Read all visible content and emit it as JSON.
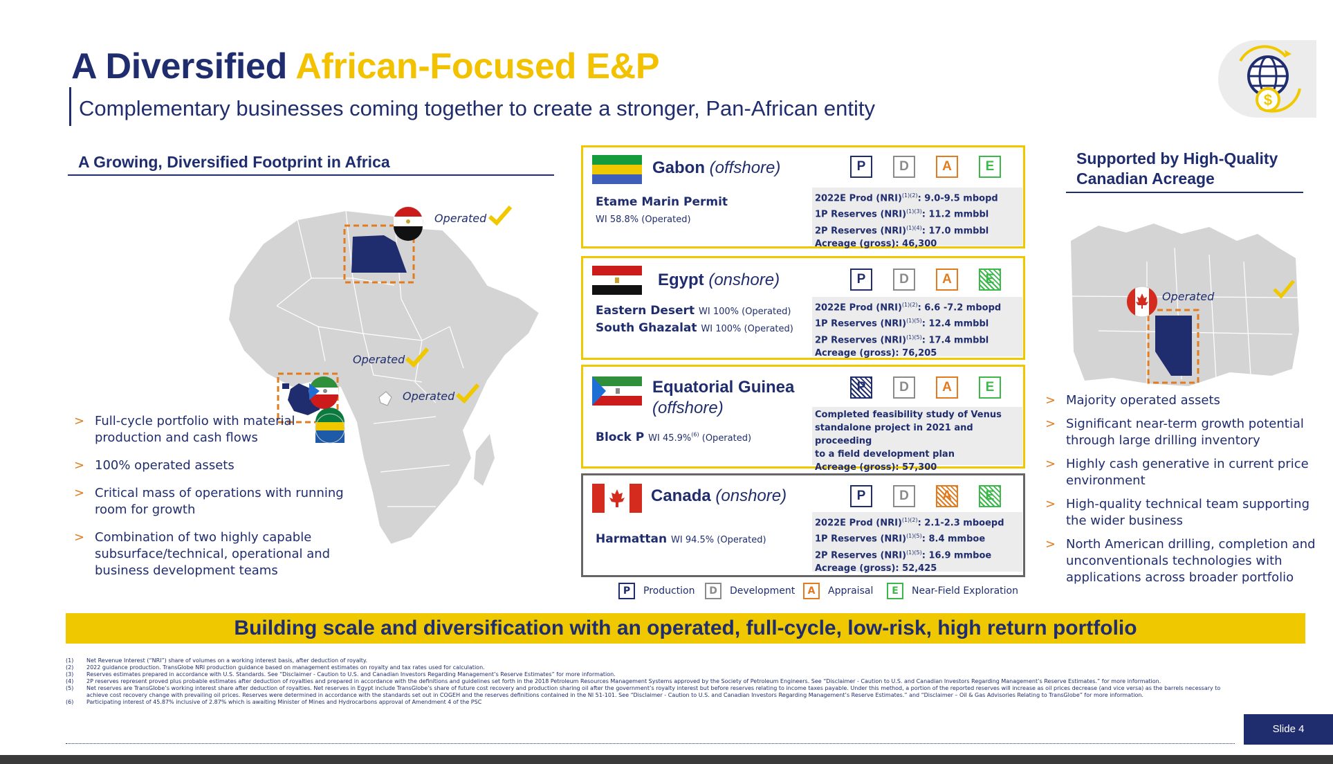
{
  "header": {
    "title_part1": "A Diversified ",
    "title_part2": "African-Focused E&P",
    "subtitle": "Complementary businesses coming together to create a stronger, Pan-African entity",
    "icon": "globe-dollar-icon"
  },
  "left": {
    "heading": "A Growing, Diversified Footprint in Africa",
    "operated_label": "Operated",
    "map_icon": "africa-map",
    "bullets": [
      "Full-cycle portfolio with material production and cash flows",
      "100% operated assets",
      "Critical mass of operations with running room for growth",
      "Combination of two highly capable subsurface/technical, operational and business development teams"
    ]
  },
  "cards": {
    "gabon": {
      "name": "Gabon",
      "loc": "(offshore)",
      "asset": "Etame Marin Permit",
      "wi": "WI 58.8% (Operated)",
      "stats": [
        {
          "label": "2022E Prod (NRI)",
          "sup": "(1)(2)",
          "value": ": 9.0-9.5 mbopd"
        },
        {
          "label": "1P Reserves (NRI)",
          "sup": "(1)(3)",
          "value": ": 11.2 mmbbl"
        },
        {
          "label": "2P Reserves (NRI)",
          "sup": "(1)(4)",
          "value": ": 17.0 mmbbl"
        },
        {
          "label": "Acreage (gross): 46,300",
          "sup": "",
          "value": ""
        }
      ]
    },
    "egypt": {
      "name": "Egypt",
      "loc": "(onshore)",
      "asset1": "Eastern Desert",
      "wi1": "WI 100% (Operated)",
      "asset2": "South Ghazalat",
      "wi2": "WI 100% (Operated)",
      "stats": [
        {
          "label": "2022E Prod (NRI)",
          "sup": "(1)(2)",
          "value": ": 6.6 -7.2 mbopd"
        },
        {
          "label": "1P Reserves (NRI)",
          "sup": "(1)(5)",
          "value": ": 12.4 mmbbl"
        },
        {
          "label": "2P Reserves (NRI)",
          "sup": "(1)(5)",
          "value": ": 17.4 mmbbl"
        },
        {
          "label": "Acreage (gross): 76,205",
          "sup": "",
          "value": ""
        }
      ]
    },
    "eqg": {
      "name": "Equatorial Guinea",
      "loc": "(offshore)",
      "asset": "Block P",
      "wi_a": "WI 45.9%",
      "wi_sup": "(6)",
      "wi_b": " (Operated)",
      "text1": "Completed feasibility study of Venus",
      "text2": "standalone project in 2021 and proceeding",
      "text3": "to a field development plan",
      "text4": "Acreage (gross): 57,300"
    },
    "canada": {
      "name": "Canada",
      "loc": "(onshore)",
      "asset": "Harmattan",
      "wi": "WI 94.5% (Operated)",
      "stats": [
        {
          "label": "2022E Prod (NRI)",
          "sup": "(1)(2)",
          "value": ": 2.1-2.3 mboepd"
        },
        {
          "label": "1P Reserves (NRI)",
          "sup": "(1)(5)",
          "value": ": 8.4 mmboe"
        },
        {
          "label": "2P Reserves (NRI)",
          "sup": "(1)(5)",
          "value": ": 16.9 mmboe"
        },
        {
          "label": "Acreage (gross): 52,425",
          "sup": "",
          "value": ""
        }
      ]
    }
  },
  "badge_letters": {
    "p": "P",
    "d": "D",
    "a": "A",
    "e": "E"
  },
  "legend": {
    "production": "Production",
    "development": "Development",
    "appraisal": "Appraisal",
    "exploration": "Near-Field Exploration"
  },
  "right": {
    "heading_line1": "Supported by High-Quality",
    "heading_line2": "Canadian Acreage",
    "operated_label": "Operated",
    "bullets": [
      "Majority operated assets",
      "Significant near-term growth potential through large drilling inventory",
      "Highly cash generative in current price environment",
      "High-quality technical team supporting the wider business",
      "North American drilling, completion and unconventionals technologies with applications across broader portfolio"
    ]
  },
  "banner": "Building scale and diversification with an operated, full-cycle, low-risk, high return portfolio",
  "footnotes": [
    {
      "n": "(1)",
      "t": "Net Revenue Interest (“NRI”) share of volumes on a working interest basis, after deduction of royalty."
    },
    {
      "n": "(2)",
      "t": "2022 guidance production. TransGlobe NRI production guidance based on management estimates on royalty and tax rates used for calculation."
    },
    {
      "n": "(3)",
      "t": "Reserves estimates prepared in accordance with U.S. Standards. See “Disclaimer - Caution to U.S. and Canadian Investors Regarding Management’s Reserve Estimates” for more information."
    },
    {
      "n": "(4)",
      "t": "2P reserves represent proved plus probable estimates after deduction of royalties and prepared in accordance with the definitions and guidelines set forth in the 2018 Petroleum Resources Management Systems approved by the Society of Petroleum Engineers. See “Disclaimer - Caution to U.S. and Canadian Investors Regarding Management’s Reserve Estimates.” for more information."
    },
    {
      "n": "(5)",
      "t": "Net reserves are TransGlobe’s working interest share after deduction of royalties. Net reserves in Egypt include TransGlobe’s share of future cost recovery and production sharing oil after the government’s royalty interest but before reserves relating to income taxes payable. Under this method, a portion of the reported reserves will increase as oil prices decrease (and vice versa) as the barrels necessary to achieve cost recovery change with prevailing oil prices. Reserves were determined in accordance with the standards set out in COGEH and the reserves definitions contained in the NI 51-101. See “Disclaimer - Caution to U.S. and Canadian Investors Regarding Management’s Reserve Estimates.” and “Disclaimer – Oil & Gas Advisories Relating to TransGlobe” for more information."
    },
    {
      "n": "(6)",
      "t": "Participating interest of 45.87% inclusive of 2.87% which is awaiting Minister of Mines and Hydrocarbons approval of Amendment 4 of the PSC"
    }
  ],
  "slide_number": "Slide 4"
}
